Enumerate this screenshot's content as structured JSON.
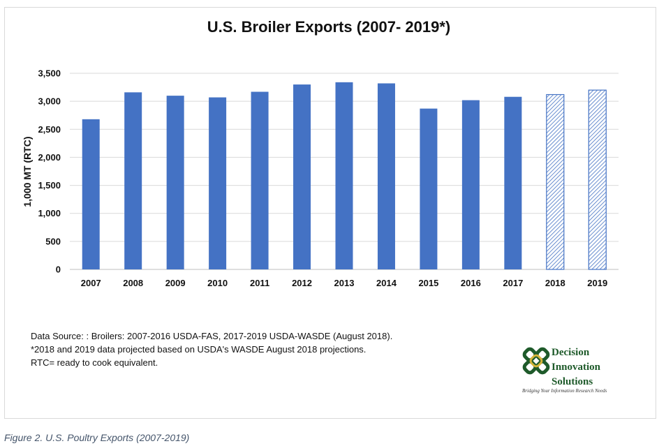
{
  "chart_data": {
    "type": "bar",
    "title": "U.S. Broiler Exports (2007- 2019*)",
    "ylabel": "1,000 MT (RTC)",
    "xlabel": "",
    "categories": [
      "2007",
      "2008",
      "2009",
      "2010",
      "2011",
      "2012",
      "2013",
      "2014",
      "2015",
      "2016",
      "2017",
      "2018",
      "2019"
    ],
    "values": [
      2680,
      3160,
      3100,
      3070,
      3170,
      3300,
      3340,
      3320,
      2870,
      3020,
      3080,
      3120,
      3200
    ],
    "projected": [
      false,
      false,
      false,
      false,
      false,
      false,
      false,
      false,
      false,
      false,
      false,
      true,
      true
    ],
    "ylim": [
      0,
      3500
    ],
    "yticks": [
      0,
      500,
      1000,
      1500,
      2000,
      2500,
      3000,
      3500
    ],
    "ytick_labels": [
      "0",
      "500",
      "1,000",
      "1,500",
      "2,000",
      "2,500",
      "3,000",
      "3,500"
    ],
    "grid": true,
    "bar_color": "#4472c4"
  },
  "notes": {
    "line1": "Data Source: :  Broilers: 2007-2016 USDA-FAS,  2017-2019 USDA-WASDE (August 2018).",
    "line2": "*2018 and 2019 data projected based on USDA's WASDE August 2018 projections.",
    "line3": "RTC= ready to cook equivalent."
  },
  "logo": {
    "line1": "Decision",
    "line2": "Innovation",
    "line3": "Solutions",
    "tagline": "Bridging Your Information Research Needs",
    "green": "#1e5a2a",
    "gold": "#d4b43a"
  },
  "caption": "Figure 2. U.S. Poultry Exports (2007-2019)"
}
